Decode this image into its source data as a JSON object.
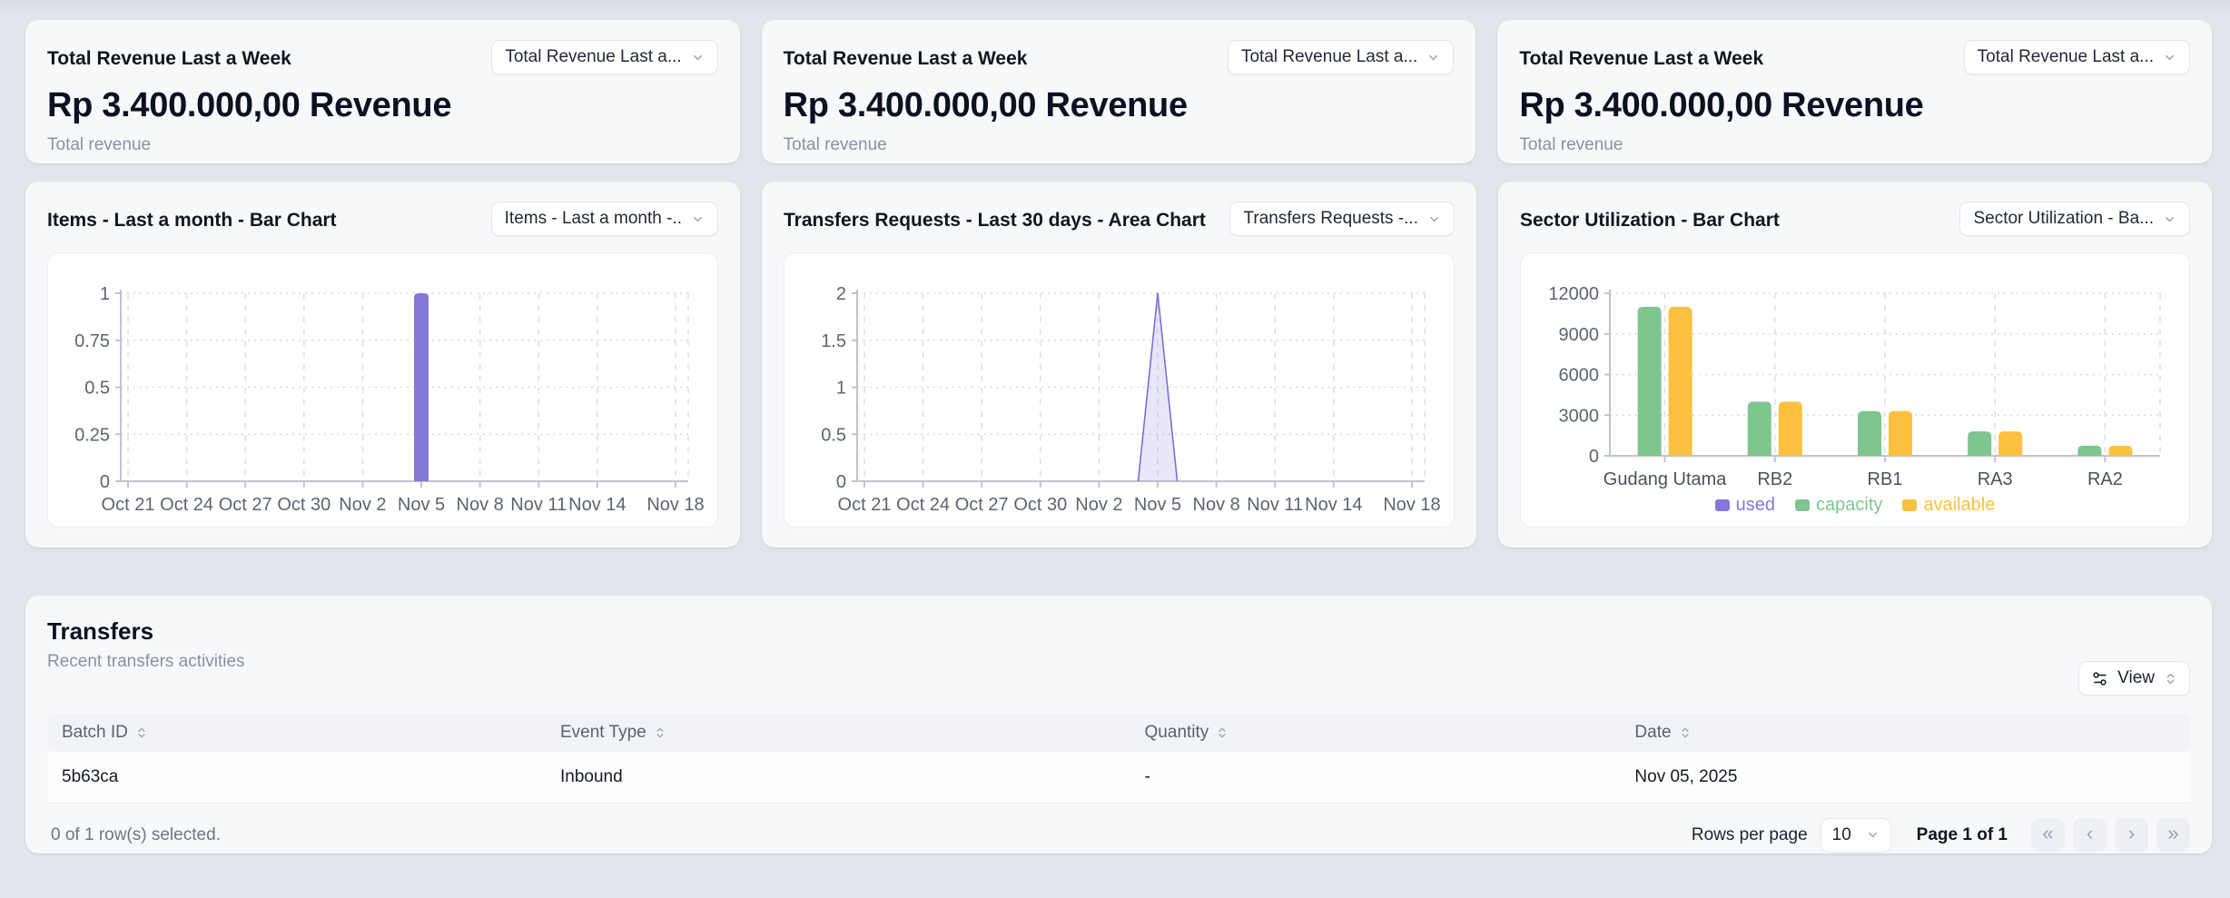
{
  "colors": {
    "purple": "#8279d9",
    "purple_line": "#7a70d4",
    "green": "#7ec58f",
    "yellow": "#fbc13e",
    "page_bg": "#e2e6ec",
    "card_bg": "#f7f8fa"
  },
  "top_cards": [
    {
      "title": "Total Revenue Last a Week",
      "dropdown_label": "Total Revenue Last a...",
      "value": "Rp 3.400.000,00 Revenue",
      "subtitle": "Total revenue"
    },
    {
      "title": "Total Revenue Last a Week",
      "dropdown_label": "Total Revenue Last a...",
      "value": "Rp 3.400.000,00 Revenue",
      "subtitle": "Total revenue"
    },
    {
      "title": "Total Revenue Last a Week",
      "dropdown_label": "Total Revenue Last a...",
      "value": "Rp 3.400.000,00 Revenue",
      "subtitle": "Total revenue"
    }
  ],
  "chart_cards": [
    {
      "title": "Items - Last a month - Bar Chart",
      "dropdown_label": "Items - Last a month -..",
      "chart_id": "items"
    },
    {
      "title": "Transfers Requests - Last 30 days - Area Chart",
      "dropdown_label": "Transfers Requests -...",
      "chart_id": "transfers"
    },
    {
      "title": "Sector Utilization - Bar Chart",
      "dropdown_label": "Sector Utilization - Ba...",
      "chart_id": "sector"
    }
  ],
  "chart_data": [
    {
      "id": "items",
      "type": "bar",
      "title": "Items - Last a month - Bar Chart",
      "x_ticks": [
        {
          "label": "Oct 21",
          "day": 0
        },
        {
          "label": "Oct 24",
          "day": 3
        },
        {
          "label": "Oct 27",
          "day": 6
        },
        {
          "label": "Oct 30",
          "day": 9
        },
        {
          "label": "Nov 2",
          "day": 12
        },
        {
          "label": "Nov 5",
          "day": 15
        },
        {
          "label": "Nov 8",
          "day": 18
        },
        {
          "label": "Nov 11",
          "day": 21
        },
        {
          "label": "Nov 14",
          "day": 24
        },
        {
          "label": "Nov 18",
          "day": 28
        }
      ],
      "x_domain_days": 28,
      "y_ticks": [
        0,
        0.25,
        0.5,
        0.75,
        1
      ],
      "ylim": [
        0,
        1
      ],
      "grid": true,
      "series": [
        {
          "name": "items",
          "color": "#8279d9",
          "data": [
            {
              "x_label": "Nov 5",
              "x_day": 15,
              "value": 1
            }
          ]
        }
      ]
    },
    {
      "id": "transfers",
      "type": "area",
      "title": "Transfers Requests - Last 30 days - Area Chart",
      "x_ticks": [
        {
          "label": "Oct 21",
          "day": 0
        },
        {
          "label": "Oct 24",
          "day": 3
        },
        {
          "label": "Oct 27",
          "day": 6
        },
        {
          "label": "Oct 30",
          "day": 9
        },
        {
          "label": "Nov 2",
          "day": 12
        },
        {
          "label": "Nov 5",
          "day": 15
        },
        {
          "label": "Nov 8",
          "day": 18
        },
        {
          "label": "Nov 11",
          "day": 21
        },
        {
          "label": "Nov 14",
          "day": 24
        },
        {
          "label": "Nov 18",
          "day": 28
        }
      ],
      "x_domain_days": 28,
      "y_ticks": [
        0,
        0.5,
        1,
        1.5,
        2
      ],
      "ylim": [
        0,
        2
      ],
      "grid": true,
      "series": [
        {
          "name": "transfers requests",
          "color": "#7a70d4",
          "fill": "#8279d9",
          "fill_opacity": 0.18,
          "data": [
            {
              "x_day": 14,
              "value": 0
            },
            {
              "x_label": "Nov 5",
              "x_day": 15,
              "value": 2
            },
            {
              "x_day": 16,
              "value": 0
            }
          ]
        }
      ]
    },
    {
      "id": "sector",
      "type": "grouped-bar",
      "title": "Sector Utilization - Bar Chart",
      "categories": [
        "Gudang Utama",
        "RB2",
        "RB1",
        "RA3",
        "RA2"
      ],
      "y_ticks": [
        0,
        3000,
        6000,
        9000,
        12000
      ],
      "ylim": [
        0,
        12000
      ],
      "grid": true,
      "legend_position": "bottom",
      "series": [
        {
          "name": "used",
          "color": "#8279d9",
          "values": [
            0,
            0,
            0,
            0,
            0
          ]
        },
        {
          "name": "capacity",
          "color": "#7ec58f",
          "values": [
            11000,
            4000,
            3300,
            1800,
            750
          ]
        },
        {
          "name": "available",
          "color": "#fbc13e",
          "values": [
            11000,
            4000,
            3300,
            1800,
            750
          ]
        }
      ],
      "legend": [
        {
          "label": "used",
          "color": "#8279d9"
        },
        {
          "label": "capacity",
          "color": "#7ec58f"
        },
        {
          "label": "available",
          "color": "#fbc13e"
        }
      ]
    }
  ],
  "transfers_section": {
    "title": "Transfers",
    "subtitle": "Recent transfers activities",
    "view_button": "View",
    "table": {
      "columns": [
        "Batch ID",
        "Event Type",
        "Quantity",
        "Date"
      ],
      "rows": [
        [
          "5b63ca",
          "Inbound",
          "-",
          "Nov 05, 2025"
        ]
      ]
    },
    "footer": {
      "selected_text": "0 of 1 row(s) selected.",
      "rows_per_page_label": "Rows per page",
      "rows_per_page_value": "10",
      "page_text": "Page 1 of 1",
      "pager": [
        {
          "name": "first-page-button",
          "glyph": "«"
        },
        {
          "name": "prev-page-button",
          "glyph": "‹"
        },
        {
          "name": "next-page-button",
          "glyph": "›"
        },
        {
          "name": "last-page-button",
          "glyph": "»"
        }
      ]
    }
  }
}
